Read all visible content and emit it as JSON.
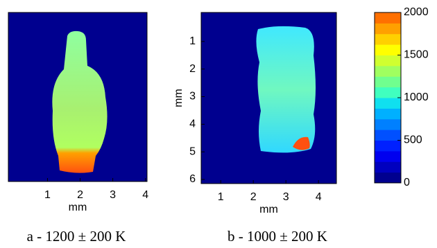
{
  "chart_data": [
    {
      "type": "heatmap",
      "caption": "a - 1200 ± 200 K",
      "xlabel": "mm",
      "xlim": [
        -0.2,
        4.05
      ],
      "xticks": [
        1,
        2,
        3,
        4
      ],
      "background": "#00008f"
    },
    {
      "type": "heatmap",
      "caption": "b - 1000 ± 200 K",
      "xlabel": "mm",
      "ylabel": "mm",
      "xlim": [
        0.4,
        4.55
      ],
      "xticks": [
        1,
        2,
        3,
        4
      ],
      "ylim": [
        -0.05,
        6.15
      ],
      "yticks": [
        1,
        2,
        3,
        4,
        5,
        6
      ],
      "y_reversed": true,
      "background": "#00008f"
    },
    {
      "type": "colorbar",
      "ylim": [
        0,
        2000
      ],
      "yticks": [
        0,
        500,
        1000,
        1500,
        2000
      ],
      "colors": [
        "#00008f",
        "#0000bf",
        "#0000ef",
        "#0020ff",
        "#0050ff",
        "#0080ff",
        "#00b0ff",
        "#10e0ef",
        "#40ffbf",
        "#70ff8f",
        "#a0ff60",
        "#d0ff30",
        "#ffff00",
        "#ffd000",
        "#ffa000",
        "#ff7000"
      ]
    }
  ]
}
